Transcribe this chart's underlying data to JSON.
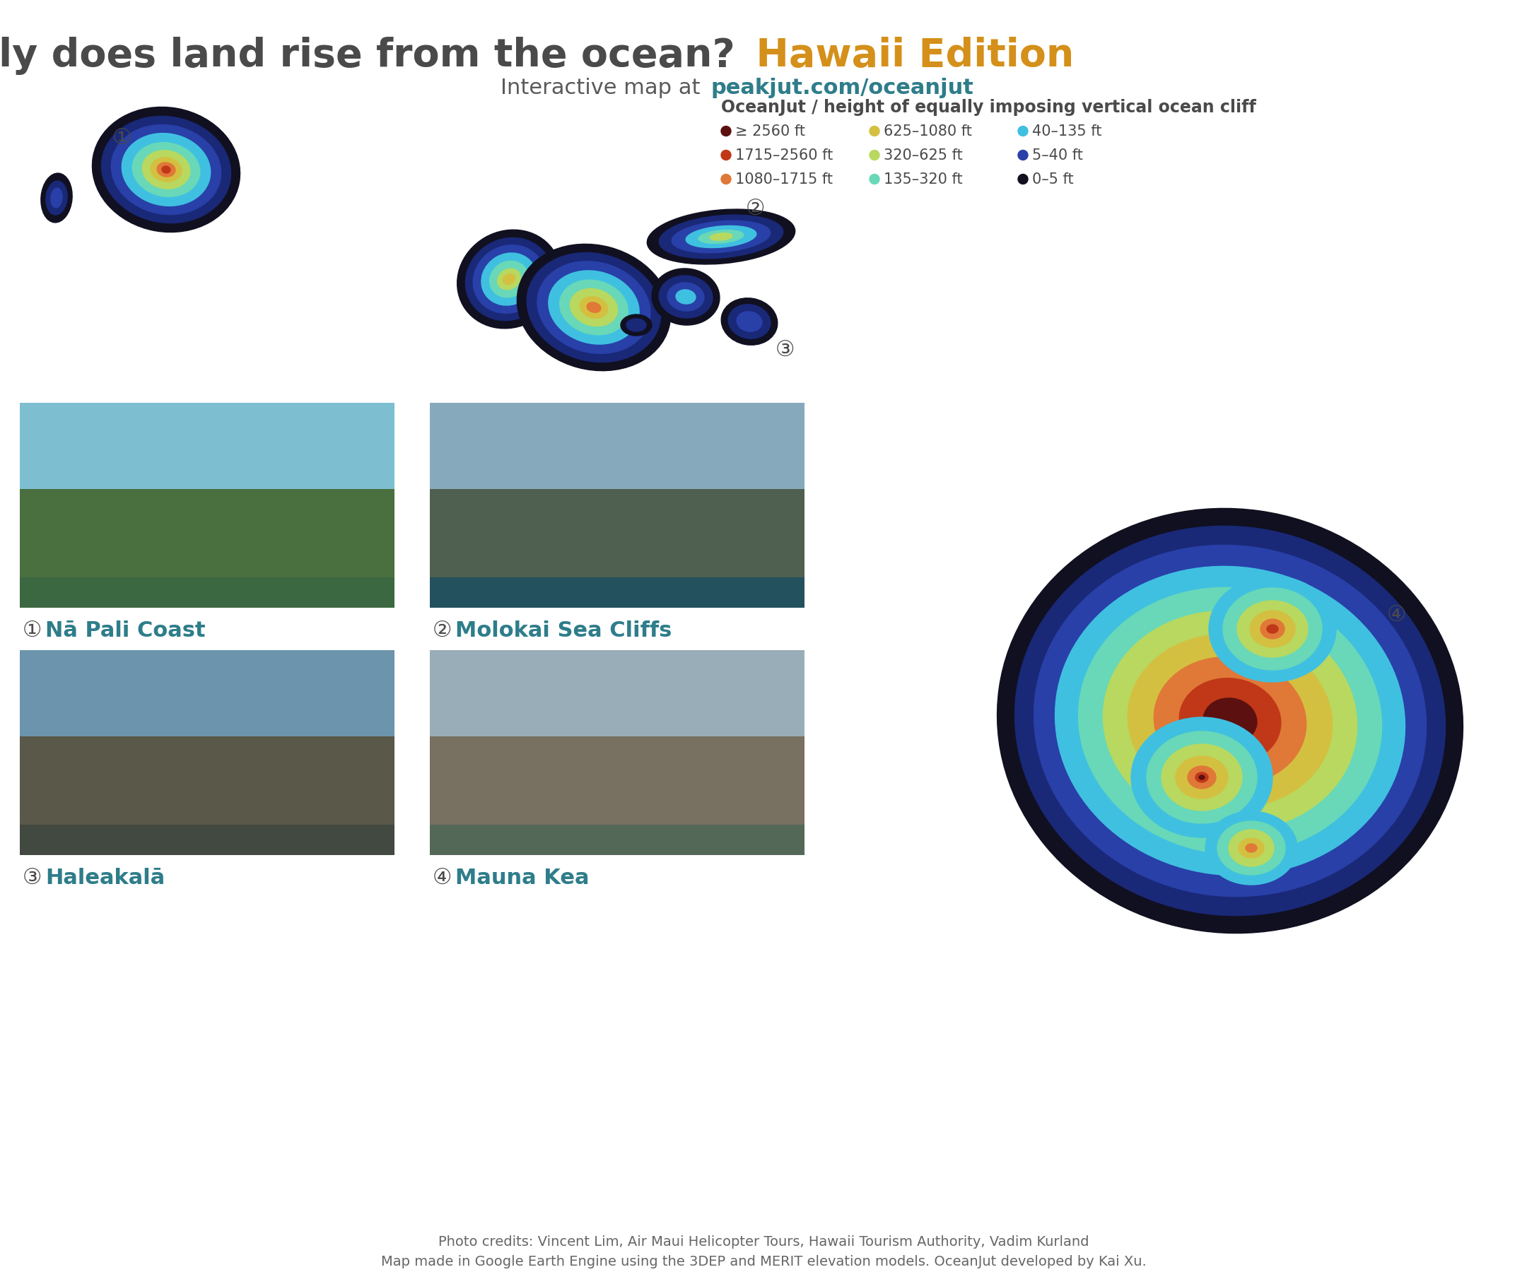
{
  "title_part1": "How dramatically does land rise from the ocean?",
  "title_part2": " Hawaii Edition",
  "subtitle_plain": "Interactive map at ",
  "subtitle_link": "peakjut.com/oceanjut",
  "legend_title": "OceanJut / height of equally imposing vertical ocean cliff",
  "legend_col1": [
    {
      "color": "#5C1010",
      "label": "≥ 2560 ft"
    },
    {
      "color": "#C03818",
      "label": "1715–2560 ft"
    },
    {
      "color": "#E07838",
      "label": "1080–1715 ft"
    }
  ],
  "legend_col2": [
    {
      "color": "#D4C040",
      "label": "625–1080 ft"
    },
    {
      "color": "#B8D860",
      "label": "320–625 ft"
    },
    {
      "color": "#68D8B8",
      "label": "135–320 ft"
    }
  ],
  "legend_col3": [
    {
      "color": "#40C0E0",
      "label": "40–135 ft"
    },
    {
      "color": "#2840A8",
      "label": "5–40 ft"
    },
    {
      "color": "#101020",
      "label": "0–5 ft"
    }
  ],
  "footer1": "Photo credits: Vincent Lim, Air Maui Helicopter Tours, Hawaii Tourism Authority, Vadim Kurland",
  "footer2": "Map made in Google Earth Engine using the 3DEP and MERIT elevation models. OceanJut developed by Kai Xu.",
  "title_color": "#4A4A4A",
  "hawaii_color": "#D4901A",
  "subtitle_color": "#5A5A5A",
  "link_color": "#2E7D8A",
  "label_color": "#2E7D8A",
  "num_color": "#4A4A4A",
  "background_color": "#FFFFFF",
  "title_fontsize": 40,
  "subtitle_fontsize": 22,
  "legend_title_fontsize": 17,
  "legend_item_fontsize": 15,
  "photo_label_fontsize": 22,
  "photo_num_fontsize": 22,
  "footer_fontsize": 14
}
